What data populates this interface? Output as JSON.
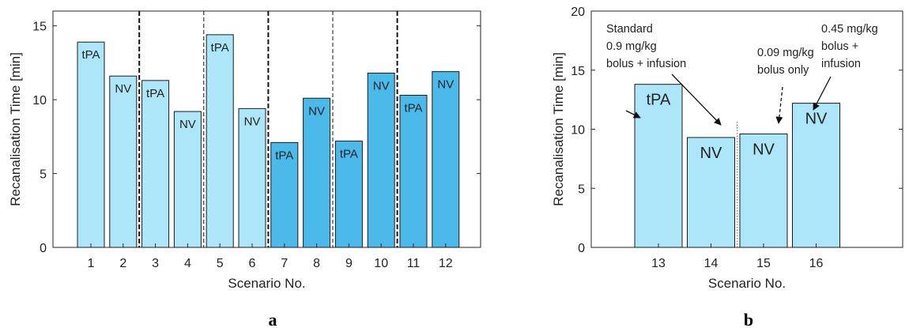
{
  "chart_data": [
    {
      "type": "bar",
      "panel_label": "a",
      "xlabel": "Scenario No.",
      "ylabel": "Recanalisation Time [min]",
      "ylim": [
        0,
        16
      ],
      "yticks": [
        0,
        5,
        10,
        15
      ],
      "categories": [
        "1",
        "2",
        "3",
        "4",
        "5",
        "6",
        "7",
        "8",
        "9",
        "10",
        "11",
        "12"
      ],
      "values": [
        13.9,
        11.6,
        11.3,
        9.2,
        14.4,
        9.4,
        7.1,
        10.1,
        7.2,
        11.8,
        10.3,
        11.9
      ],
      "bar_labels": [
        "tPA",
        "NV",
        "tPA",
        "NV",
        "tPA",
        "NV",
        "tPA",
        "NV",
        "tPA",
        "NV",
        "tPA",
        "NV"
      ],
      "bar_colors": [
        "#aee6f9",
        "#aee6f9",
        "#aee6f9",
        "#aee6f9",
        "#aee6f9",
        "#aee6f9",
        "#4cb9eb",
        "#4cb9eb",
        "#4cb9eb",
        "#4cb9eb",
        "#4cb9eb",
        "#4cb9eb"
      ],
      "separators": [
        {
          "between": [
            2,
            3
          ],
          "style": "dashed-bold"
        },
        {
          "between": [
            4,
            5
          ],
          "style": "dashed-thin"
        },
        {
          "between": [
            6,
            7
          ],
          "style": "dashed-bold"
        },
        {
          "between": [
            8,
            9
          ],
          "style": "dashed-thin"
        },
        {
          "between": [
            10,
            11
          ],
          "style": "dashed-bold"
        }
      ],
      "grid": false
    },
    {
      "type": "bar",
      "panel_label": "b",
      "xlabel": "Scenario No.",
      "ylabel": "Recanalisation Time [min]",
      "ylim": [
        0,
        20
      ],
      "yticks": [
        0,
        5,
        10,
        15,
        20
      ],
      "categories": [
        "13",
        "14",
        "15",
        "16"
      ],
      "values": [
        13.8,
        9.3,
        9.6,
        12.2
      ],
      "bar_labels": [
        "tPA",
        "NV",
        "NV",
        "NV"
      ],
      "bar_colors": [
        "#aee6f9",
        "#aee6f9",
        "#aee6f9",
        "#aee6f9"
      ],
      "separators": [
        {
          "between": [
            14,
            15
          ],
          "style": "dotted"
        }
      ],
      "annotations": [
        {
          "lines": [
            "Standard",
            "0.9 mg/kg",
            "bolus + infusion"
          ],
          "targets": [
            "13",
            "14"
          ],
          "arrow": "solid"
        },
        {
          "lines": [
            "0.09 mg/kg",
            "bolus only"
          ],
          "targets": [
            "15"
          ],
          "arrow": "dashed"
        },
        {
          "lines": [
            "0.45 mg/kg",
            "bolus +",
            "infusion"
          ],
          "targets": [
            "16"
          ],
          "arrow": "solid"
        }
      ],
      "grid": false
    }
  ]
}
